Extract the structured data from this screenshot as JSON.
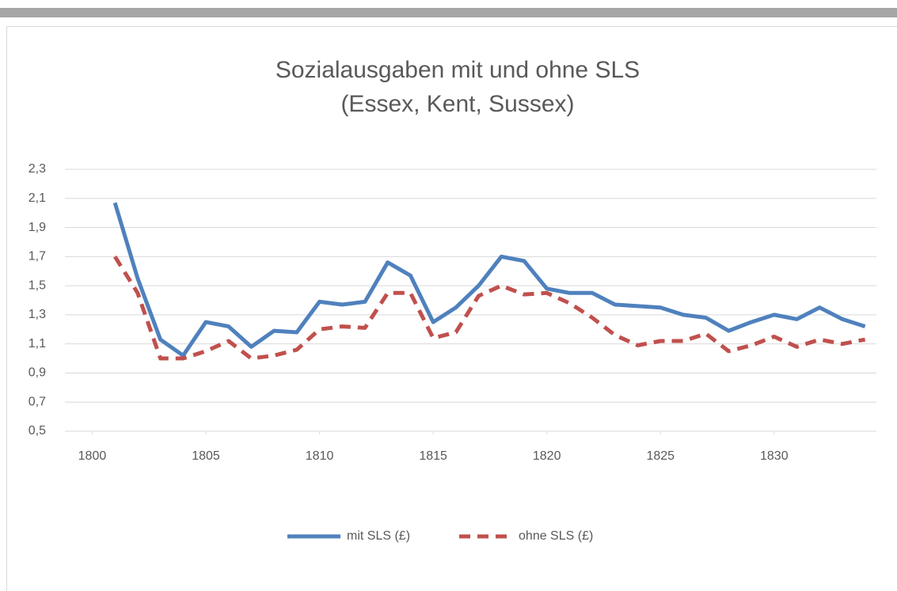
{
  "chart_data": {
    "type": "line",
    "title": "Sozialausgaben mit und ohne SLS",
    "subtitle": "(Essex, Kent, Sussex)",
    "x": [
      1801,
      1802,
      1803,
      1804,
      1805,
      1806,
      1807,
      1808,
      1809,
      1810,
      1811,
      1812,
      1813,
      1814,
      1815,
      1816,
      1817,
      1818,
      1819,
      1820,
      1821,
      1822,
      1823,
      1824,
      1825,
      1826,
      1827,
      1828,
      1829,
      1830,
      1831,
      1832,
      1833,
      1834
    ],
    "series": [
      {
        "name": "mit SLS (£)",
        "color": "#4f81bd",
        "dashed": false,
        "values": [
          2.07,
          1.55,
          1.13,
          1.02,
          1.25,
          1.22,
          1.08,
          1.19,
          1.18,
          1.39,
          1.37,
          1.39,
          1.66,
          1.57,
          1.25,
          1.35,
          1.5,
          1.7,
          1.67,
          1.48,
          1.45,
          1.45,
          1.37,
          1.36,
          1.35,
          1.3,
          1.28,
          1.19,
          1.25,
          1.3,
          1.27,
          1.35,
          1.27,
          1.22
        ]
      },
      {
        "name": "ohne SLS (£)",
        "color": "#c0504d",
        "dashed": true,
        "values": [
          1.7,
          1.45,
          1.0,
          1.0,
          1.05,
          1.12,
          1.0,
          1.02,
          1.06,
          1.2,
          1.22,
          1.21,
          1.45,
          1.45,
          1.14,
          1.18,
          1.43,
          1.5,
          1.44,
          1.45,
          1.38,
          1.28,
          1.16,
          1.09,
          1.12,
          1.12,
          1.17,
          1.05,
          1.09,
          1.15,
          1.08,
          1.13,
          1.1,
          1.13
        ]
      }
    ],
    "xlim": [
      1798.8,
      1834.5
    ],
    "xticks": [
      1800,
      1805,
      1810,
      1815,
      1820,
      1825,
      1830
    ],
    "ylim": [
      0.5,
      2.3
    ],
    "yticks": [
      {
        "value": 0.5,
        "label": "0,5"
      },
      {
        "value": 0.7,
        "label": "0,7"
      },
      {
        "value": 0.9,
        "label": "0,9"
      },
      {
        "value": 1.1,
        "label": "1,1"
      },
      {
        "value": 1.3,
        "label": "1,3"
      },
      {
        "value": 1.5,
        "label": "1,5"
      },
      {
        "value": 1.7,
        "label": "1,7"
      },
      {
        "value": 1.9,
        "label": "1,9"
      },
      {
        "value": 2.1,
        "label": "2,1"
      },
      {
        "value": 2.3,
        "label": "2,3"
      }
    ],
    "grid": true,
    "legend": "bottom"
  }
}
